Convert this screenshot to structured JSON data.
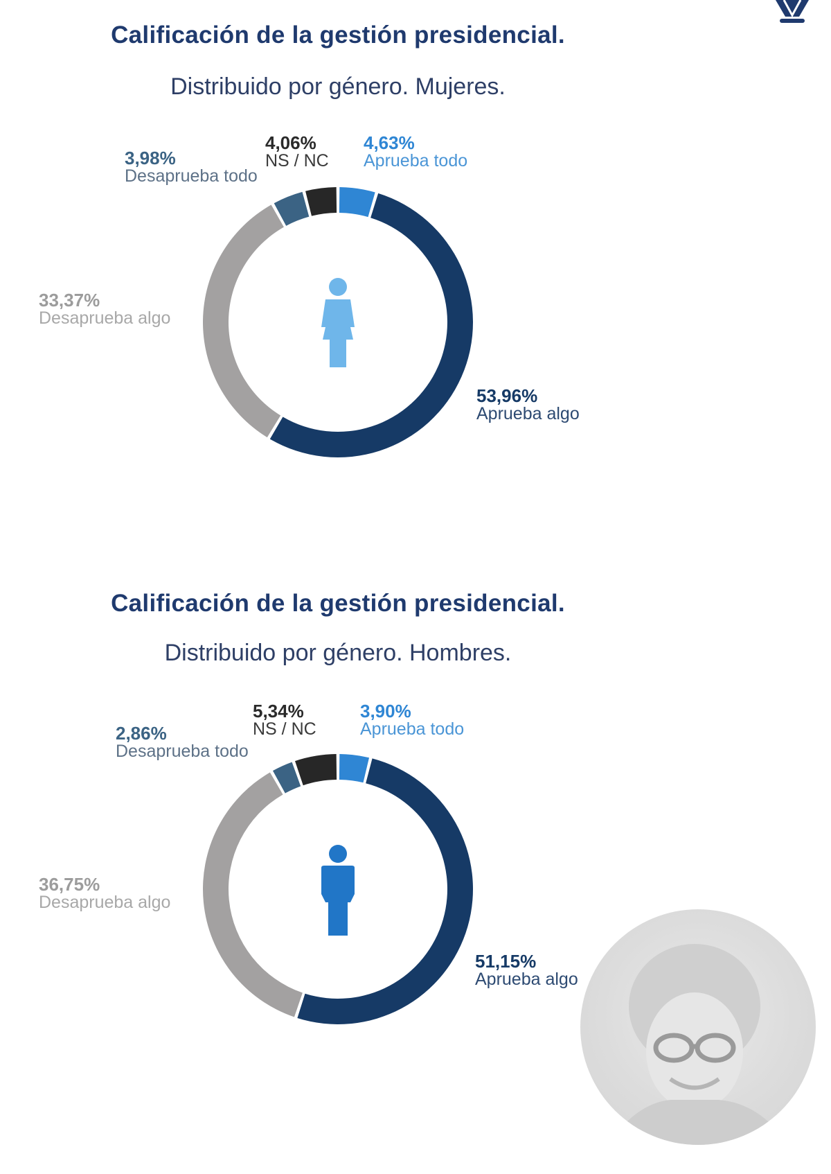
{
  "logo": {
    "icon": "shield-crest-icon",
    "color": "#1f3a6e"
  },
  "charts": [
    {
      "title": "Calificación de la gestión presidencial.",
      "subtitle": "Distribuido por género. Mujeres.",
      "center_icon": "woman-icon",
      "center_icon_color": "#6fb6ea",
      "labels": {
        "aprueba_todo": {
          "pct": "4,63%",
          "text": "Aprueba todo"
        },
        "aprueba_algo": {
          "pct": "53,96%",
          "text": "Aprueba algo"
        },
        "desaprueba_algo": {
          "pct": "33,37%",
          "text": "Desaprueba algo"
        },
        "desaprueba_todo": {
          "pct": "3,98%",
          "text": "Desaprueba todo"
        },
        "nsnc": {
          "pct": "4,06%",
          "text": "NS / NC"
        }
      }
    },
    {
      "title": "Calificación de la gestión presidencial.",
      "subtitle": "Distribuido por género. Hombres.",
      "center_icon": "man-icon",
      "center_icon_color": "#2176c7",
      "labels": {
        "aprueba_todo": {
          "pct": "3,90%",
          "text": "Aprueba todo"
        },
        "aprueba_algo": {
          "pct": "51,15%",
          "text": "Aprueba algo"
        },
        "desaprueba_algo": {
          "pct": "36,75%",
          "text": "Desaprueba algo"
        },
        "desaprueba_todo": {
          "pct": "2,86%",
          "text": "Desaprueba todo"
        },
        "nsnc": {
          "pct": "5,34%",
          "text": "NS / NC"
        }
      }
    }
  ],
  "colors": {
    "aprueba_todo": "#2f86d4",
    "aprueba_algo": "#163a66",
    "desaprueba_algo": "#a3a1a1",
    "desaprueba_todo": "#3b6384",
    "nsnc": "#272727",
    "title": "#1f3a6e"
  },
  "photo": {
    "description": "faded grayscale portrait in circle"
  },
  "chart_data": [
    {
      "type": "pie",
      "variant": "donut",
      "title": "Calificación de la gestión presidencial.",
      "subtitle": "Distribuido por género. Mujeres.",
      "categories": [
        "Aprueba todo",
        "Aprueba algo",
        "Desaprueba algo",
        "Desaprueba todo",
        "NS / NC"
      ],
      "values": [
        4.63,
        53.96,
        33.37,
        3.98,
        4.06
      ],
      "colors": [
        "#2f86d4",
        "#163a66",
        "#a3a1a1",
        "#3b6384",
        "#272727"
      ],
      "start_angle": "12 o'clock, clockwise",
      "legend": "none (direct labels)"
    },
    {
      "type": "pie",
      "variant": "donut",
      "title": "Calificación de la gestión presidencial.",
      "subtitle": "Distribuido por género. Hombres.",
      "categories": [
        "Aprueba todo",
        "Aprueba algo",
        "Desaprueba algo",
        "Desaprueba todo",
        "NS / NC"
      ],
      "values": [
        3.9,
        51.15,
        36.75,
        2.86,
        5.34
      ],
      "colors": [
        "#2f86d4",
        "#163a66",
        "#a3a1a1",
        "#3b6384",
        "#272727"
      ],
      "start_angle": "12 o'clock, clockwise",
      "legend": "none (direct labels)"
    }
  ]
}
